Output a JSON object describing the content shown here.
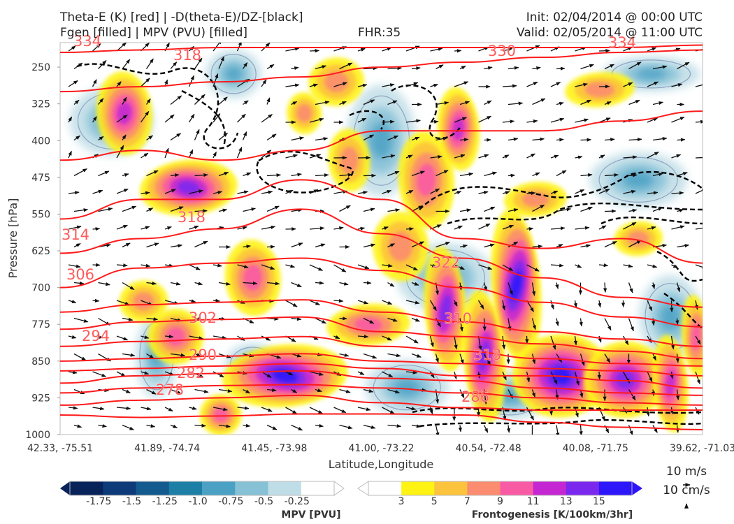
{
  "header": {
    "line1_left": "Theta-E (K) [red] | -D(theta-E)/DZ-[black]",
    "line2_left": "Fgen [filled] | MPV (PVU) [filled]",
    "fhr": "FHR:35",
    "init": "Init: 02/04/2014 @ 00:00 UTC",
    "valid": "Valid: 02/05/2014 @ 11:00 UTC"
  },
  "colors": {
    "theta_e": "#ff1a1a",
    "theta_e_label": "#ff5a5a",
    "dthetae_dz": "#000000",
    "mpv_ramp": [
      "#08225a",
      "#0d3a78",
      "#135a8e",
      "#1e7fa6",
      "#4aa1c4",
      "#86c1d6",
      "#bfdde6",
      "#ffffff"
    ],
    "fgen_ramp": [
      "#ffffff",
      "#fff314",
      "#fcc33c",
      "#fb8c6f",
      "#f95aa4",
      "#c427d2",
      "#7b28ee",
      "#2d16f9"
    ]
  },
  "chart_data": {
    "type": "cross-section",
    "xlabel": "Latitude,Longitude",
    "ylabel": "Pressure [hPa]",
    "x_ticks": [
      "42.33, -75.51",
      "41.89, -74.74",
      "41.45, -73.98",
      "41.00, -73.22",
      "40.54, -72.48",
      "40.08, -71.75",
      "39.62, -71.03"
    ],
    "y_ticks": [
      "250",
      "325",
      "400",
      "475",
      "550",
      "625",
      "700",
      "775",
      "850",
      "925",
      "1000"
    ],
    "y_range_hpa": [
      200,
      1000
    ],
    "theta_e_contours": [
      {
        "value": "278",
        "level": [
          960,
          965,
          962,
          958,
          958,
          960,
          975,
          985,
          990
        ]
      },
      {
        "value": "282",
        "level": [
          940,
          930,
          925,
          920,
          935,
          945,
          950,
          950,
          950
        ]
      },
      {
        "value": "286",
        "level": [
          915,
          905,
          900,
          898,
          905,
          915,
          925,
          935,
          940
        ]
      },
      {
        "value": "290",
        "level": [
          895,
          880,
          875,
          870,
          885,
          890,
          905,
          915,
          920
        ]
      },
      {
        "value": "294",
        "level": [
          870,
          865,
          860,
          855,
          865,
          880,
          880,
          890,
          905
        ]
      },
      {
        "value": "298",
        "level": [
          850,
          845,
          840,
          835,
          850,
          855,
          865,
          870,
          880
        ]
      },
      {
        "value": "302",
        "level": [
          820,
          810,
          805,
          800,
          820,
          830,
          845,
          855,
          860
        ]
      },
      {
        "value": "306",
        "level": [
          785,
          770,
          765,
          760,
          790,
          800,
          815,
          830,
          845
        ]
      },
      {
        "value": "310",
        "level": [
          750,
          735,
          730,
          725,
          750,
          770,
          790,
          805,
          820
        ]
      },
      {
        "value": "314",
        "level": [
          700,
          660,
          650,
          640,
          665,
          700,
          730,
          760,
          780
        ]
      },
      {
        "value": "318",
        "level": [
          630,
          600,
          580,
          540,
          590,
          640,
          680,
          720,
          740
        ]
      },
      {
        "value": "322",
        "level": [
          560,
          520,
          520,
          480,
          520,
          600,
          620,
          600,
          650
        ]
      },
      {
        "value": "326",
        "level": [
          440,
          420,
          440,
          420,
          380,
          380,
          380,
          360,
          340
        ]
      },
      {
        "value": "330",
        "level": [
          300,
          290,
          280,
          270,
          250,
          240,
          230,
          220,
          215
        ]
      },
      {
        "value": "334",
        "level": [
          220,
          215,
          210,
          210,
          210,
          210,
          210,
          210,
          205
        ]
      }
    ],
    "theta_e_labels": [
      "334",
      "318",
      "318",
      "314",
      "306",
      "302",
      "294",
      "290",
      "282",
      "278",
      "322",
      "310",
      "318",
      "286",
      "330",
      "334"
    ],
    "wind_legend": {
      "u": "10 m/s",
      "w": "10 cm/s"
    },
    "colorbar_mpv": {
      "label": "MPV [PVU]",
      "ticks": [
        "-1.75",
        "-1.5",
        "-1.25",
        "-1.0",
        "-0.75",
        "-0.5",
        "-0.25"
      ]
    },
    "colorbar_fgen": {
      "label": "Frontogenesis [K/100km/3hr]",
      "ticks": [
        "3",
        "5",
        "7",
        "9",
        "11",
        "13",
        "15"
      ]
    }
  }
}
